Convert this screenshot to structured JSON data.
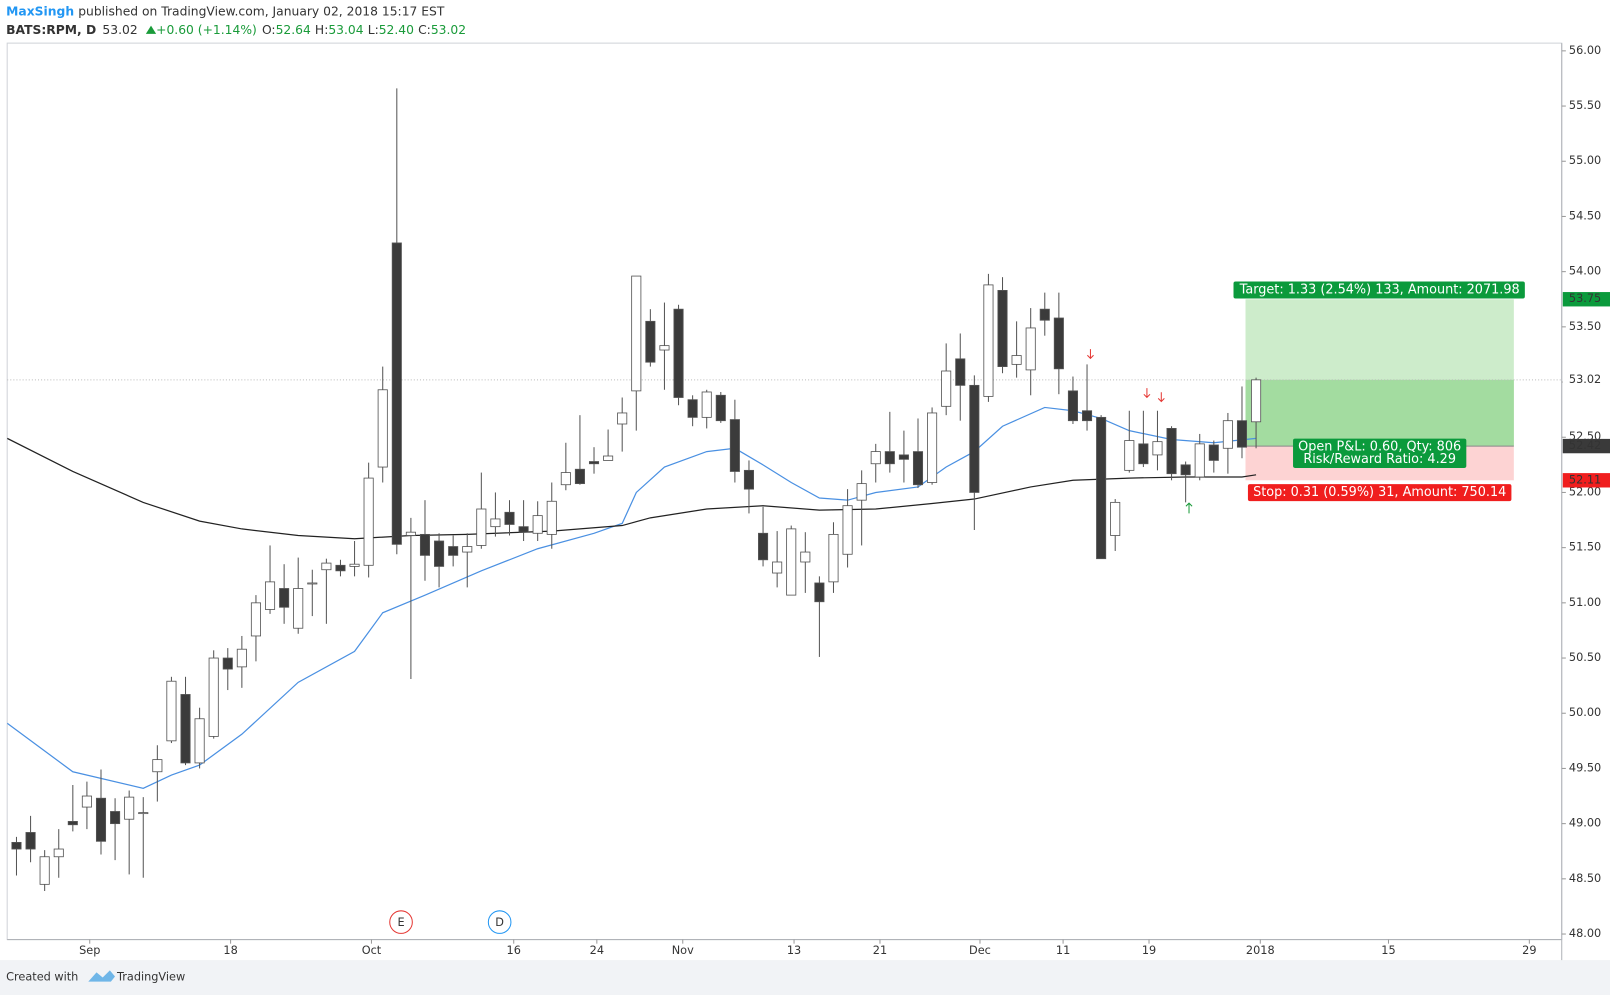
{
  "header": {
    "author": "MaxSingh",
    "published": "published on TradingView.com, January 02, 2018 15:17 EST",
    "symbol": "BATS:RPM, D",
    "last": "53.02",
    "change": "+0.60 (+1.14%)",
    "ohlc": [
      {
        "key": "O:",
        "value": "52.64"
      },
      {
        "key": "H:",
        "value": "53.04"
      },
      {
        "key": "L:",
        "value": "52.40"
      },
      {
        "key": "C:",
        "value": "53.02"
      }
    ]
  },
  "footer": {
    "created": "Created with",
    "brand": "TradingView"
  },
  "chart_data": {
    "type": "candlestick",
    "up_color": "#ffffff",
    "down_color": "#3b3b3b",
    "wick_color": "#555555",
    "grid": false,
    "open": [
      48.83,
      48.92,
      48.45,
      48.7,
      49.02,
      49.15,
      49.23,
      49.11,
      49.04,
      49.1,
      49.47,
      49.75,
      50.17,
      49.55,
      49.79,
      50.5,
      50.42,
      50.7,
      50.94,
      51.13,
      50.77,
      51.18,
      51.3,
      51.34,
      51.33,
      51.34,
      52.23,
      54.26,
      51.61,
      51.62,
      51.56,
      51.51,
      51.46,
      51.52,
      51.69,
      51.82,
      51.69,
      51.63,
      51.62,
      52.07,
      52.21,
      52.28,
      52.29,
      52.62,
      52.92,
      53.55,
      53.29,
      53.66,
      52.84,
      52.68,
      52.88,
      52.66,
      52.2,
      51.63,
      51.27,
      51.07,
      51.37,
      51.18,
      51.19,
      51.44,
      51.93,
      52.26,
      52.37,
      52.34,
      52.37,
      52.09,
      52.78,
      53.21,
      52.97,
      52.87,
      53.83,
      53.16,
      53.11,
      53.66,
      53.58,
      52.92,
      52.74,
      52.68,
      51.61,
      52.2,
      52.44,
      52.34,
      52.58,
      52.25,
      52.14,
      52.43,
      52.4,
      52.65,
      52.64
    ],
    "high": [
      48.88,
      49.07,
      48.76,
      48.95,
      49.35,
      49.38,
      49.49,
      49.23,
      49.3,
      49.24,
      49.71,
      50.33,
      50.33,
      50.05,
      50.57,
      50.59,
      50.7,
      51.07,
      51.52,
      51.35,
      51.41,
      51.3,
      51.4,
      51.39,
      51.56,
      52.27,
      53.14,
      55.66,
      51.77,
      51.93,
      51.63,
      51.61,
      51.63,
      52.18,
      52.0,
      51.93,
      51.93,
      51.92,
      52.09,
      52.45,
      52.7,
      52.41,
      52.57,
      52.86,
      53.96,
      53.66,
      53.72,
      53.7,
      52.88,
      52.93,
      52.91,
      52.84,
      52.29,
      51.87,
      51.65,
      51.7,
      51.64,
      51.24,
      51.73,
      52.03,
      52.2,
      52.44,
      52.73,
      52.56,
      52.67,
      52.77,
      53.35,
      53.44,
      53.06,
      53.98,
      53.95,
      53.55,
      53.67,
      53.81,
      53.81,
      53.05,
      53.16,
      52.7,
      51.94,
      52.74,
      52.74,
      52.74,
      52.6,
      52.28,
      52.53,
      52.47,
      52.72,
      52.96,
      53.04
    ],
    "low": [
      48.53,
      48.65,
      48.39,
      48.51,
      48.93,
      48.95,
      48.72,
      48.67,
      48.54,
      48.51,
      49.2,
      49.73,
      49.53,
      49.5,
      49.77,
      50.21,
      50.23,
      50.47,
      50.9,
      50.81,
      50.72,
      50.88,
      50.81,
      51.24,
      51.24,
      51.23,
      52.09,
      51.44,
      50.31,
      51.2,
      51.14,
      51.33,
      51.14,
      51.49,
      51.6,
      51.61,
      51.56,
      51.56,
      51.49,
      52.02,
      52.07,
      52.17,
      52.29,
      52.37,
      52.56,
      53.14,
      52.93,
      52.79,
      52.6,
      52.58,
      52.63,
      52.09,
      51.81,
      51.33,
      51.14,
      51.07,
      51.09,
      50.51,
      51.09,
      51.32,
      51.52,
      52.09,
      52.18,
      52.09,
      52.04,
      52.07,
      52.7,
      52.65,
      51.66,
      52.82,
      53.08,
      53.04,
      52.88,
      53.42,
      52.89,
      52.62,
      52.56,
      51.4,
      51.47,
      52.18,
      52.23,
      52.2,
      52.11,
      51.91,
      52.11,
      52.18,
      52.17,
      52.31,
      52.4
    ],
    "close": [
      48.77,
      48.77,
      48.7,
      48.77,
      48.99,
      49.25,
      48.84,
      49.0,
      49.24,
      49.1,
      49.58,
      50.29,
      49.55,
      49.95,
      50.5,
      50.4,
      50.58,
      51.0,
      51.19,
      50.96,
      51.13,
      51.18,
      51.36,
      51.29,
      51.35,
      52.13,
      52.93,
      51.53,
      51.64,
      51.43,
      51.33,
      51.43,
      51.51,
      51.85,
      51.76,
      51.71,
      51.64,
      51.79,
      51.92,
      52.18,
      52.08,
      52.26,
      52.33,
      52.72,
      53.96,
      53.18,
      53.33,
      52.86,
      52.68,
      52.91,
      52.65,
      52.19,
      52.03,
      51.39,
      51.37,
      51.67,
      51.46,
      51.01,
      51.62,
      51.88,
      52.08,
      52.37,
      52.26,
      52.3,
      52.07,
      52.72,
      53.1,
      52.97,
      52.0,
      53.88,
      53.14,
      53.24,
      53.49,
      53.56,
      53.12,
      52.65,
      52.65,
      51.4,
      51.91,
      52.47,
      52.26,
      52.46,
      52.17,
      52.16,
      52.44,
      52.29,
      52.65,
      52.41,
      53.02
    ],
    "lines": [
      {
        "color": "#4a90e2",
        "x": [
          -0.66,
          4,
          9,
          11,
          13,
          16,
          20,
          24,
          26,
          29,
          33,
          37,
          41,
          43,
          44,
          46,
          49,
          51,
          53,
          55,
          57,
          59,
          61,
          64,
          66,
          68,
          70,
          73,
          75,
          77,
          79,
          82,
          85,
          88
        ],
        "values": [
          49.91,
          49.47,
          49.32,
          49.44,
          49.53,
          49.81,
          50.28,
          50.56,
          50.91,
          51.07,
          51.29,
          51.49,
          51.63,
          51.72,
          52.0,
          52.23,
          52.37,
          52.4,
          52.25,
          52.09,
          51.95,
          51.93,
          52.0,
          52.05,
          52.23,
          52.37,
          52.6,
          52.77,
          52.74,
          52.67,
          52.56,
          52.48,
          52.45,
          52.49
        ]
      },
      {
        "color": "#222222",
        "x": [
          -0.66,
          4,
          9,
          13,
          16,
          20,
          24,
          28,
          32,
          38,
          43,
          45,
          49,
          53,
          57,
          61,
          65,
          68,
          72,
          75,
          79,
          83,
          87,
          88
        ],
        "values": [
          52.49,
          52.19,
          51.91,
          51.74,
          51.67,
          51.61,
          51.58,
          51.61,
          51.62,
          51.65,
          51.7,
          51.77,
          51.85,
          51.88,
          51.84,
          51.85,
          51.9,
          51.94,
          52.05,
          52.11,
          52.13,
          52.14,
          52.14,
          52.16
        ]
      }
    ],
    "xlim": [
      -0.66,
      109.7
    ],
    "xticks": [
      {
        "value": 5.2,
        "label": "Sep"
      },
      {
        "value": 15.2,
        "label": "18"
      },
      {
        "value": 25.2,
        "label": "Oct"
      },
      {
        "value": 35.3,
        "label": "16"
      },
      {
        "value": 41.2,
        "label": "24"
      },
      {
        "value": 47.3,
        "label": "Nov"
      },
      {
        "value": 55.2,
        "label": "13"
      },
      {
        "value": 61.3,
        "label": "21"
      },
      {
        "value": 68.4,
        "label": "Dec"
      },
      {
        "value": 74.3,
        "label": "11"
      },
      {
        "value": 80.4,
        "label": "19"
      },
      {
        "value": 88.3,
        "label": "2018"
      },
      {
        "value": 97.4,
        "label": "15"
      },
      {
        "value": 107.4,
        "label": "29"
      }
    ],
    "ylim": [
      47.95,
      56.07
    ],
    "yticks": [
      {
        "value": 48,
        "label": "48.00"
      },
      {
        "value": 48.5,
        "label": "48.50"
      },
      {
        "value": 49,
        "label": "49.00"
      },
      {
        "value": 49.5,
        "label": "49.50"
      },
      {
        "value": 50,
        "label": "50.00"
      },
      {
        "value": 50.5,
        "label": "50.50"
      },
      {
        "value": 51,
        "label": "51.00"
      },
      {
        "value": 51.5,
        "label": "51.50"
      },
      {
        "value": 52,
        "label": "52.00"
      },
      {
        "value": 52.5,
        "label": "52.50"
      },
      {
        "value": 53,
        "label": "53.00"
      },
      {
        "value": 53.5,
        "label": "53.50"
      },
      {
        "value": 54,
        "label": "54.00"
      },
      {
        "value": 54.5,
        "label": "54.50"
      },
      {
        "value": 55,
        "label": "55.00"
      },
      {
        "value": 55.5,
        "label": "55.50"
      },
      {
        "value": 56,
        "label": "56.00"
      }
    ],
    "last_price": 53.02,
    "price_tags": [
      {
        "value": 53.75,
        "color": "#0b9a3c",
        "text_color": "#ffffff"
      },
      {
        "value": 53.02,
        "color": "#ffffff",
        "text_color": "#333333"
      },
      {
        "value": 52.42,
        "color": "#3a3a3a",
        "text_color": "#ffffff"
      },
      {
        "value": 52.11,
        "color": "#f01e1e",
        "text_color": "#ffffff"
      }
    ],
    "position": {
      "start": 87.25,
      "end": 106.3,
      "entry": 52.42,
      "target": 53.75,
      "stop": 52.11,
      "current": 53.02,
      "target_label": "Target: 1.33 (2.54%) 133, Amount: 2071.98",
      "pnl_label": "Open P&L: 0.60, Qty: 806",
      "ratio_label": "Risk/Reward Ratio: 4.29",
      "stop_label": "Stop: 0.31 (0.59%) 31, Amount: 750.14"
    },
    "events": [
      {
        "label": "E",
        "x": 27.3,
        "color": "#e53935"
      },
      {
        "label": "D",
        "x": 34.3,
        "color": "#2196f3"
      }
    ]
  }
}
